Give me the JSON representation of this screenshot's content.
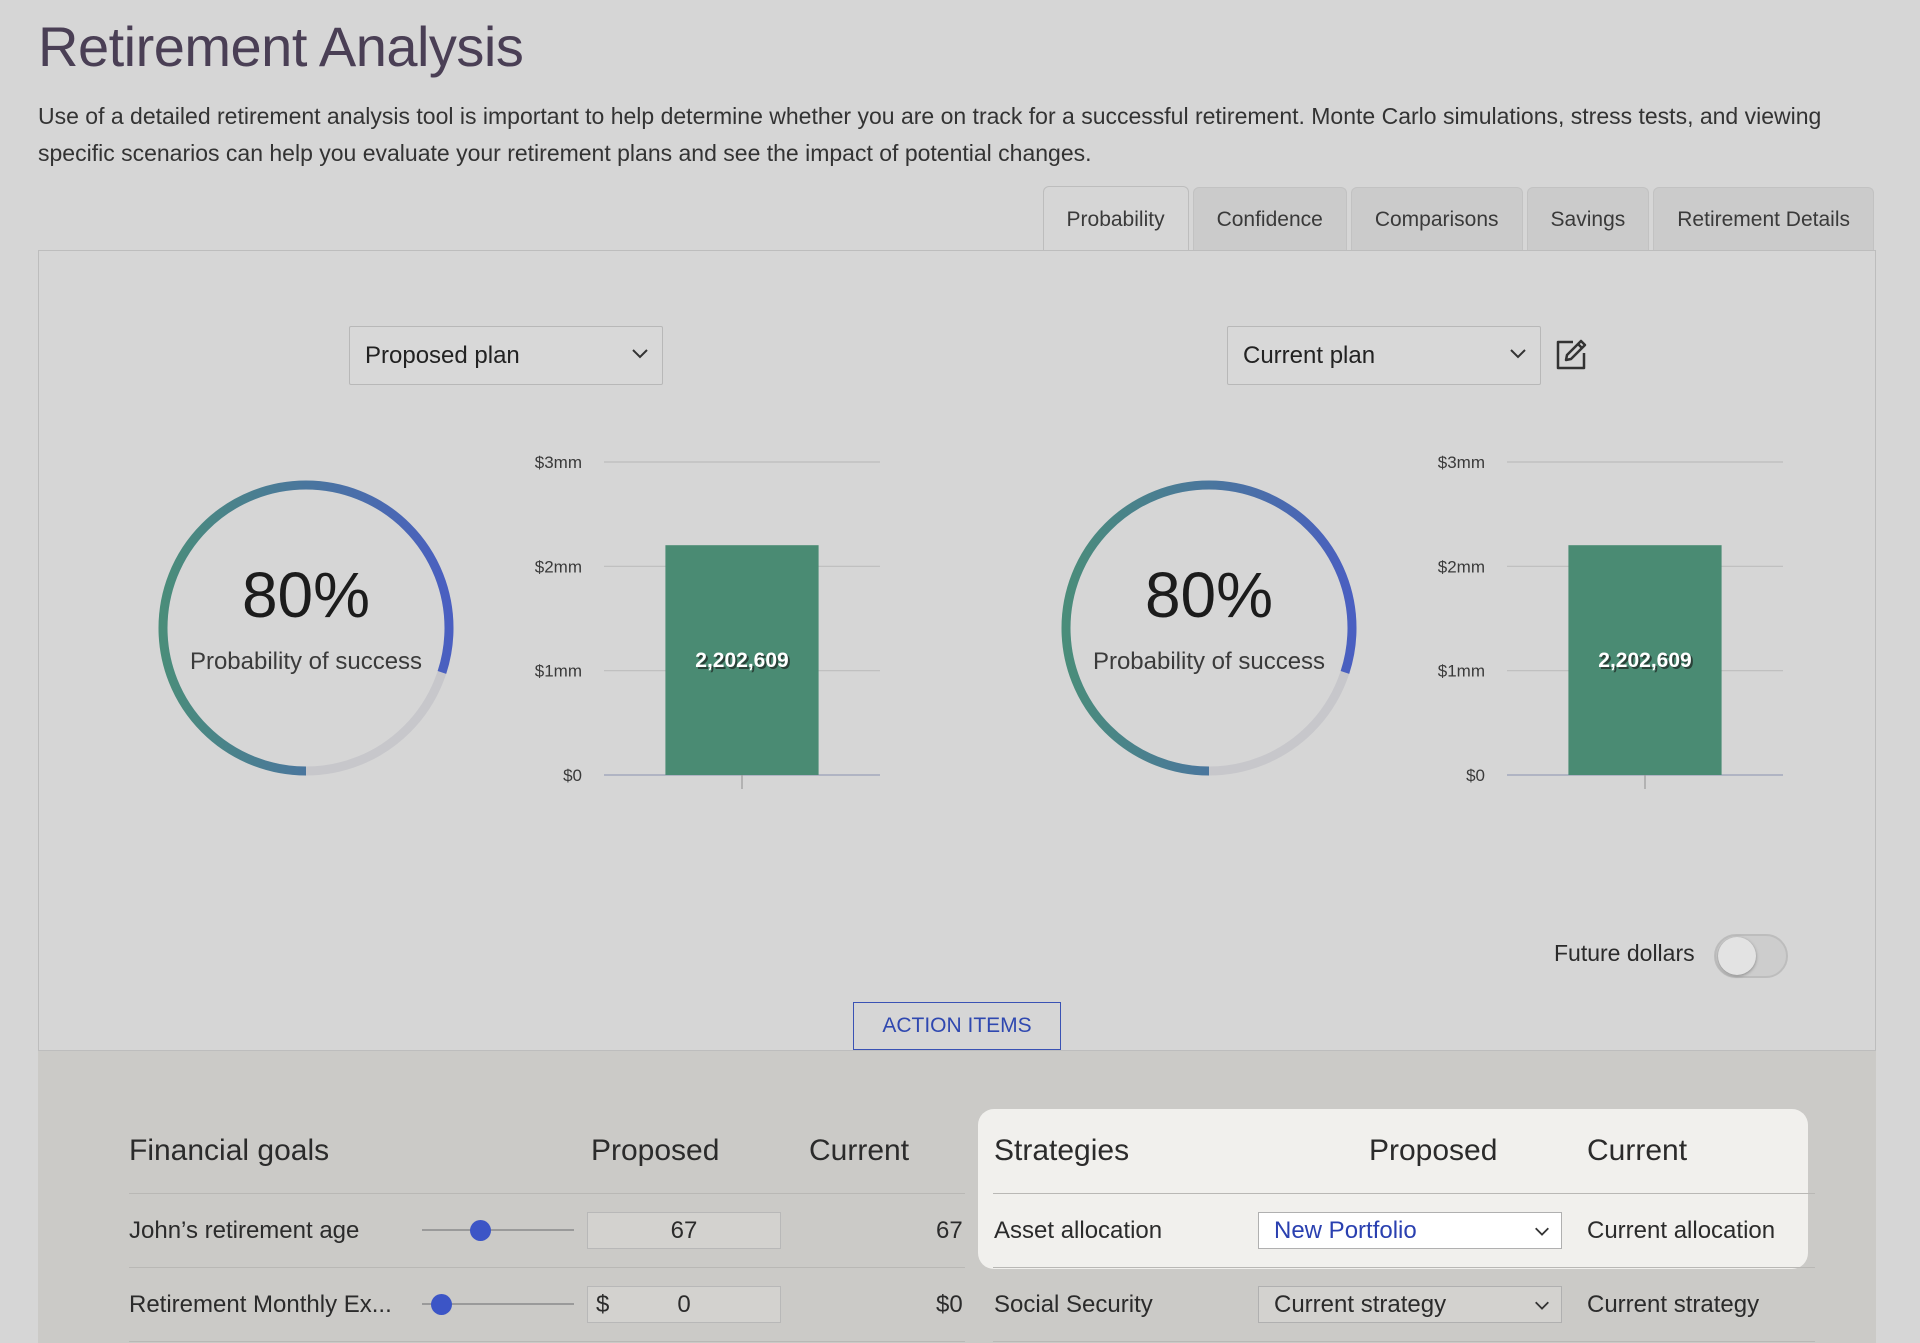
{
  "page": {
    "title": "Retirement Analysis",
    "intro": "Use of a detailed retirement analysis tool is important to help determine whether you are on track for a successful retirement. Monte Carlo simulations, stress tests, and viewing specific scenarios can help you evaluate your retirement plans and see the impact of potential changes."
  },
  "tabs": [
    {
      "label": "Probability",
      "active": true
    },
    {
      "label": "Confidence",
      "active": false
    },
    {
      "label": "Comparisons",
      "active": false
    },
    {
      "label": "Savings",
      "active": false
    },
    {
      "label": "Retirement Details",
      "active": false
    }
  ],
  "plans": {
    "left": {
      "select_value": "Proposed plan",
      "probability": "80%",
      "probability_label": "Probability of success",
      "progress": 0.8
    },
    "right": {
      "select_value": "Current plan",
      "probability": "80%",
      "probability_label": "Probability of success",
      "progress": 0.8
    }
  },
  "colors": {
    "accent_blue": "#3c55c6",
    "bar_green": "#4a8b73",
    "ring_track": "#c7c7cb",
    "ring_start": "#4a5fc1",
    "ring_end": "#4a8d7a",
    "link_blue": "#2f48b0"
  },
  "chart_data": [
    {
      "type": "bar",
      "categories": [
        ""
      ],
      "values": [
        2202609
      ],
      "data_labels": [
        "2,202,609"
      ],
      "ylim": [
        0,
        3000000
      ],
      "yticks": [
        0,
        1000000,
        2000000,
        3000000
      ],
      "ytick_labels": [
        "$0",
        "$1mm",
        "$2mm",
        "$3mm"
      ],
      "grid": true,
      "title": "",
      "xlabel": "",
      "ylabel": ""
    },
    {
      "type": "bar",
      "categories": [
        ""
      ],
      "values": [
        2202609
      ],
      "data_labels": [
        "2,202,609"
      ],
      "ylim": [
        0,
        3000000
      ],
      "yticks": [
        0,
        1000000,
        2000000,
        3000000
      ],
      "ytick_labels": [
        "$0",
        "$1mm",
        "$2mm",
        "$3mm"
      ],
      "grid": true,
      "title": "",
      "xlabel": "",
      "ylabel": ""
    }
  ],
  "future_dollars": {
    "label": "Future dollars",
    "enabled": false
  },
  "action_items_label": "ACTION ITEMS",
  "goals": {
    "header": "Financial goals",
    "col_proposed": "Proposed",
    "col_current": "Current",
    "rows": [
      {
        "label": "John’s retirement age",
        "slider_value": 0.37,
        "currency": "",
        "proposed": "67",
        "current": "67"
      },
      {
        "label": "Retirement Monthly Ex...",
        "slider_value": 0.07,
        "currency": "$",
        "proposed": "0",
        "current": "$0"
      }
    ]
  },
  "strategies": {
    "header": "Strategies",
    "col_proposed": "Proposed",
    "col_current": "Current",
    "rows": [
      {
        "label": "Asset allocation",
        "proposed": "New Portfolio",
        "current": "Current allocation"
      },
      {
        "label": "Social Security",
        "proposed": "Current strategy",
        "current": "Current strategy"
      }
    ]
  },
  "icons": {
    "select_chevron": "chevron-down-icon",
    "edit": "edit-icon"
  }
}
